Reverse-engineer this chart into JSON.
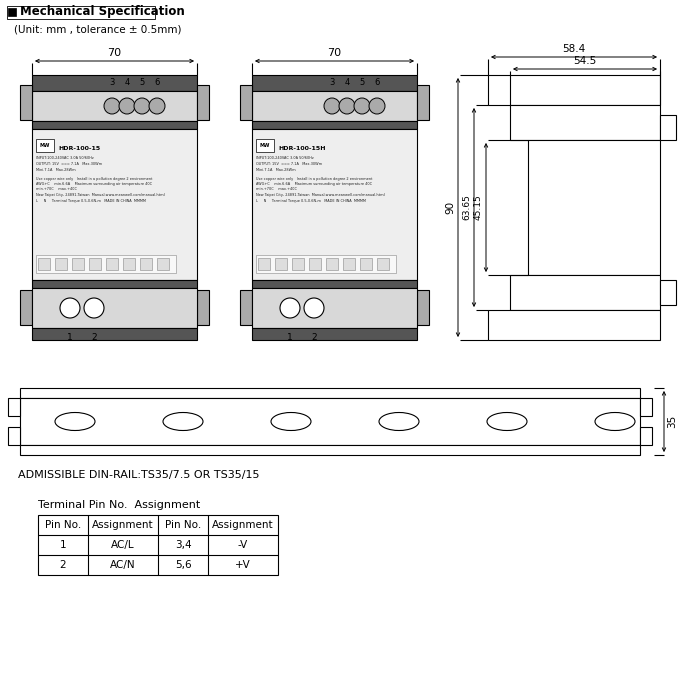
{
  "title": "Mechanical Specification",
  "subtitle": "(Unit: mm , tolerance ± 0.5mm)",
  "bg_color": "#ffffff",
  "fig_width": 7.0,
  "fig_height": 6.79,
  "dpi": 100,
  "dim_70": "70",
  "dim_58_4": "58.4",
  "dim_54_5": "54.5",
  "dim_90": "90",
  "dim_63_65": "63.65",
  "dim_45_15": "45.15",
  "dim_35": "35",
  "din_rail_text": "ADMISSIBLE DIN-RAIL:TS35/7.5 OR TS35/15",
  "terminal_title": "Terminal Pin No.  Assignment",
  "table_headers": [
    "Pin No.",
    "Assignment",
    "Pin No.",
    "Assignment"
  ],
  "table_row1": [
    "1",
    "AC/L",
    "3,4",
    "-V"
  ],
  "table_row2": [
    "2",
    "AC/N",
    "5,6",
    "+V"
  ],
  "term_labels_top": [
    "3",
    "4",
    "5",
    "6"
  ],
  "term_labels_bot": [
    "1",
    "2"
  ]
}
